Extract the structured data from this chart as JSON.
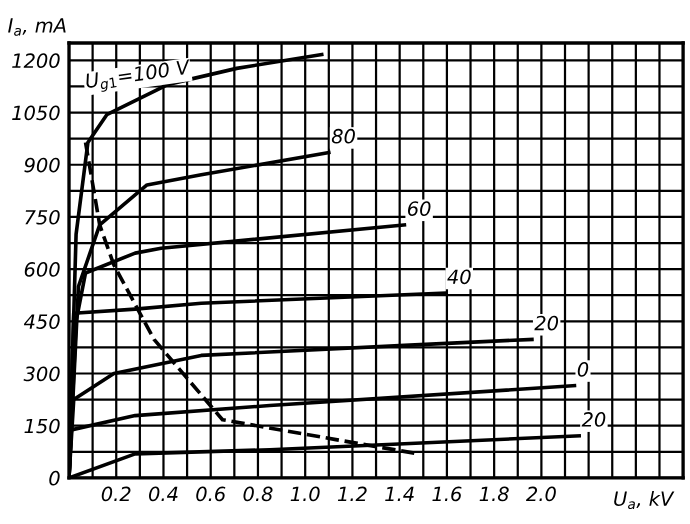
{
  "chart_data": {
    "type": "line",
    "xlabel": "U$_{a}$, kV",
    "ylabel": "I$_{a}$, mA",
    "xlim": [
      0,
      2.6
    ],
    "ylim": [
      0,
      1250
    ],
    "xticks": [
      {
        "value": 0,
        "label": null
      },
      {
        "value": 0.1,
        "label": null
      },
      0.2,
      {
        "value": 0.3,
        "label": null
      },
      0.4,
      {
        "value": 0.5,
        "label": null
      },
      0.6,
      {
        "value": 0.7,
        "label": null
      },
      0.8,
      {
        "value": 0.9,
        "label": null
      },
      {
        "value": 1.0,
        "label": "1.0"
      },
      {
        "value": 1.1,
        "label": null
      },
      1.2,
      {
        "value": 1.3,
        "label": null
      },
      1.4,
      {
        "value": 1.5,
        "label": null
      },
      1.6,
      {
        "value": 1.7,
        "label": null
      },
      1.8,
      {
        "value": 1.9,
        "label": null
      },
      {
        "value": 2.0,
        "label": "2.0"
      },
      {
        "value": 2.1,
        "label": null
      },
      {
        "value": 2.2,
        "label": null
      },
      {
        "value": 2.3,
        "label": null
      },
      {
        "value": 2.4,
        "label": null
      },
      {
        "value": 2.5,
        "label": null
      }
    ],
    "yticks": [
      0,
      {
        "value": 75,
        "label": null
      },
      150,
      {
        "value": 225,
        "label": null
      },
      300,
      {
        "value": 375,
        "label": null
      },
      450,
      {
        "value": 525,
        "label": null
      },
      600,
      {
        "value": 675,
        "label": null
      },
      750,
      {
        "value": 825,
        "label": null
      },
      900,
      {
        "value": 975,
        "label": null
      },
      1050,
      {
        "value": 1125,
        "label": null
      },
      1200
    ],
    "grid": true,
    "legend": false,
    "marker": "none",
    "series": [
      {
        "name": "U$_{g1}$=100 V",
        "color": "#000000",
        "line_style": "solid",
        "x": [
          0,
          0.03,
          0.08,
          0.16,
          0.42,
          0.71,
          1.07
        ],
        "values": [
          0,
          700,
          964,
          1044,
          1131,
          1177,
          1217
        ]
      },
      {
        "name": "80",
        "color": "#000000",
        "line_style": "solid",
        "x": [
          0,
          0.04,
          0.13,
          0.33,
          0.56,
          1.1
        ],
        "values": [
          0,
          550,
          727,
          842,
          871,
          935
        ]
      },
      {
        "name": "60",
        "color": "#000000",
        "line_style": "solid",
        "x": [
          0,
          0.03,
          0.07,
          0.28,
          0.39,
          1.42
        ],
        "values": [
          0,
          450,
          589,
          646,
          660,
          727
        ]
      },
      {
        "name": "40",
        "color": "#000000",
        "line_style": "solid",
        "x": [
          0,
          0.02,
          0.28,
          0.56,
          1.59
        ],
        "values": [
          0,
          473,
          485,
          502,
          531
        ]
      },
      {
        "name": "20",
        "color": "#000000",
        "line_style": "solid",
        "x": [
          0,
          0.02,
          0.19,
          0.56,
          1.42,
          1.96
        ],
        "values": [
          0,
          225,
          300,
          352,
          381,
          398
        ]
      },
      {
        "name": "0",
        "color": "#000000",
        "line_style": "solid",
        "x": [
          0,
          0.01,
          0.28,
          0.85,
          2.14
        ],
        "values": [
          0,
          138,
          179,
          208,
          265
        ]
      },
      {
        "name": "20",
        "color": "#000000",
        "line_style": "solid",
        "x": [
          0,
          0.28,
          0.85,
          1.42,
          2.16
        ],
        "values": [
          0,
          69,
          81,
          98,
          121
        ]
      },
      {
        "color": "#000000",
        "line_style": "dashed",
        "x": [
          0.07,
          0.13,
          0.19,
          0.36,
          0.65,
          1.13,
          1.48
        ],
        "values": [
          964,
          727,
          612,
          398,
          167,
          110,
          69
        ]
      }
    ]
  }
}
